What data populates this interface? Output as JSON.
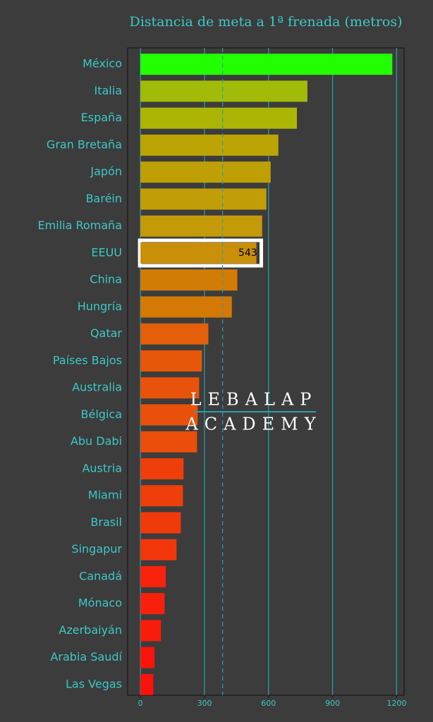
{
  "chart_data": {
    "type": "bar",
    "orientation": "horizontal",
    "title": "Distancia de meta a 1ª frenada (metros)",
    "categories": [
      "México",
      "Italia",
      "España",
      "Gran Bretaña",
      "Japón",
      "Baréin",
      "Emilia Romaña",
      "EEUU",
      "China",
      "Hungría",
      "Qatar",
      "Países Bajos",
      "Australia",
      "Bélgica",
      "Abu Dabi",
      "Austria",
      "Miami",
      "Brasil",
      "Singapur",
      "Canadá",
      "Mónaco",
      "Azerbaiyán",
      "Arabia Saudí",
      "Las Vegas"
    ],
    "values": [
      1180,
      782,
      733,
      646,
      610,
      590,
      570,
      543,
      454,
      428,
      318,
      288,
      275,
      268,
      265,
      202,
      199,
      189,
      169,
      119,
      113,
      96,
      66,
      60
    ],
    "colors": [
      "#22ff00",
      "#a2bb08",
      "#acb505",
      "#bba404",
      "#bea006",
      "#c19d08",
      "#c49a08",
      "#c98f08",
      "#d07c05",
      "#d47905",
      "#e35f0a",
      "#e6570a",
      "#e8520a",
      "#e9500a",
      "#ea4e0a",
      "#ee3f0a",
      "#ee3e0a",
      "#f03a0a",
      "#f2360b",
      "#f7220b",
      "#f8200b",
      "#f91c0b",
      "#fb140b",
      "#fc120b"
    ],
    "highlight_index": 7,
    "reference_line": 385,
    "xlim": [
      -60,
      1235
    ],
    "xticks": [
      0,
      300,
      600,
      900,
      1200
    ],
    "grid": true,
    "watermark": [
      "LEBALAP",
      "ACADEMY"
    ]
  }
}
